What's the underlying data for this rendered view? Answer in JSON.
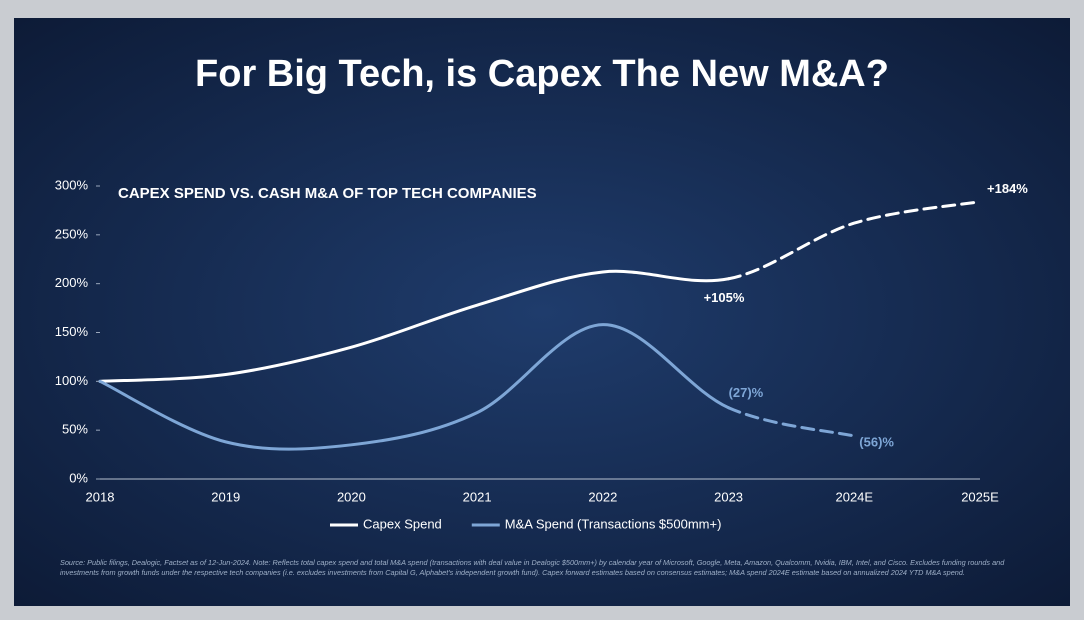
{
  "chart_data": {
    "type": "line",
    "title": "For Big Tech, is Capex The New M&A?",
    "subtitle": "CAPEX SPEND VS. CASH M&A OF TOP TECH COMPANIES",
    "categories": [
      "2018",
      "2019",
      "2020",
      "2021",
      "2022",
      "2023",
      "2024E",
      "2025E"
    ],
    "series": [
      {
        "name": "Capex Spend",
        "color": "#ffffff",
        "values": [
          100,
          107,
          135,
          178,
          212,
          205,
          262,
          284
        ],
        "dashed_from": 5
      },
      {
        "name": "M&A Spend (Transactions $500mm+)",
        "color": "#7ea6d6",
        "values": [
          100,
          38,
          35,
          68,
          158,
          73,
          44,
          null
        ],
        "dashed_from": 5
      }
    ],
    "annotations": [
      {
        "text": "+105%",
        "series": 0,
        "point": 5
      },
      {
        "text": "+184%",
        "series": 0,
        "point": 7
      },
      {
        "text": "(27)%",
        "series": 1,
        "point": 5
      },
      {
        "text": "(56)%",
        "series": 1,
        "point": 6
      }
    ],
    "ylim": [
      0,
      300
    ],
    "yticks": [
      {
        "value": 0,
        "label": "0%"
      },
      {
        "value": 50,
        "label": "50%"
      },
      {
        "value": 100,
        "label": "100%"
      },
      {
        "value": 150,
        "label": "150%"
      },
      {
        "value": 200,
        "label": "200%"
      },
      {
        "value": 250,
        "label": "250%"
      },
      {
        "value": 300,
        "label": "300%"
      }
    ],
    "grid": false,
    "legend": "bottom",
    "footnote": "Source: Public filings, Dealogic, Factset as of 12-Jun-2024. Note: Reflects total capex spend and total M&A spend (transactions with deal value in Dealogic $500mm+) by calendar year of Microsoft, Google, Meta, Amazon, Qualcomm, Nvidia, IBM, Intel, and Cisco. Excludes funding rounds and investments from growth funds under the respective tech companies (i.e. excludes investments from Capital G, Alphabet's independent growth fund). Capex forward estimates based on consensus estimates; M&A spend 2024E estimate based on annualized 2024 YTD M&A spend."
  }
}
